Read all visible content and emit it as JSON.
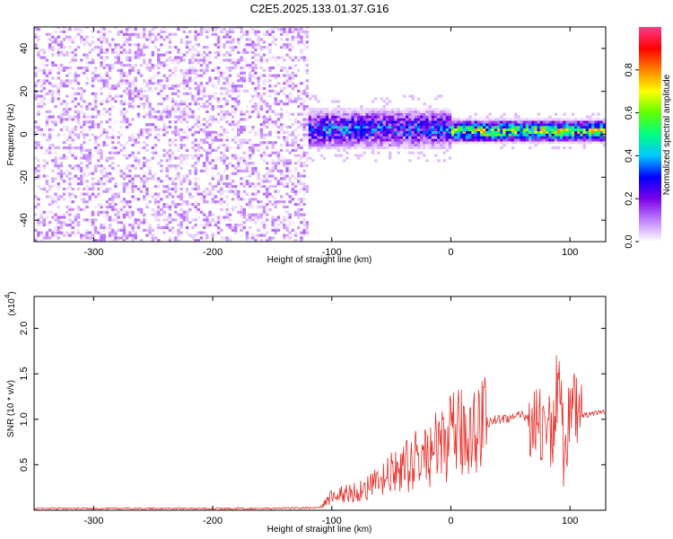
{
  "chart_data": [
    {
      "type": "heatmap",
      "title": "C2E5.2025.133.01.37.G16",
      "xlabel": "Height of straight line (km)",
      "ylabel": "Frequency (Hz)",
      "xlim": [
        -350,
        130
      ],
      "ylim": [
        -50,
        50
      ],
      "x_ticks": [
        -300,
        -200,
        -100,
        0,
        100
      ],
      "x_tick_labels": [
        "-300",
        "-200",
        "-100",
        "0",
        "100"
      ],
      "y_ticks": [
        -40,
        -20,
        0,
        20,
        40
      ],
      "y_tick_labels": [
        "-40",
        "-20",
        "0",
        "20",
        "40"
      ],
      "colorbar": {
        "label": "Normalized spectral amplitude",
        "range": [
          0,
          1
        ],
        "ticks": [
          0.0,
          0.2,
          0.4,
          0.6,
          0.8
        ],
        "tick_labels": [
          "0.0",
          "0.2",
          "0.4",
          "0.6",
          "0.8"
        ],
        "colors": [
          "#ffffff",
          "#c080ff",
          "#7b00e6",
          "#0000ff",
          "#00c8ff",
          "#00ff80",
          "#60ff00",
          "#ffff00",
          "#ff8000",
          "#ff0000",
          "#ff3c8c"
        ]
      },
      "regions": [
        {
          "x_range": [
            -350,
            -120
          ],
          "freq_range": [
            -50,
            50
          ],
          "amplitude": [
            0.0,
            0.12
          ],
          "pattern": "scattered"
        },
        {
          "x_range": [
            -120,
            0
          ],
          "freq_center": 2,
          "freq_halfwidth": 7,
          "amplitude": [
            0.1,
            0.5
          ],
          "pattern": "band"
        },
        {
          "x_range": [
            0,
            130
          ],
          "freq_center": 1,
          "freq_halfwidth": 4,
          "amplitude": [
            0.3,
            0.9
          ],
          "pattern": "band"
        }
      ]
    },
    {
      "type": "line",
      "title": "",
      "xlabel": "Height of straight line (km)",
      "ylabel": "SNR (10 * v/v)",
      "y_scale_label": "(x10",
      "y_scale_exponent": "4",
      "xlim": [
        -350,
        130
      ],
      "ylim": [
        0,
        2.35
      ],
      "x_ticks": [
        -300,
        -200,
        -100,
        0,
        100
      ],
      "x_tick_labels": [
        "-300",
        "-200",
        "-100",
        "0",
        "100"
      ],
      "y_ticks": [
        0.5,
        1.0,
        1.5,
        2.0
      ],
      "y_tick_labels": [
        "0.5",
        "1.0",
        "1.5",
        "2.0"
      ],
      "series": [
        {
          "color": "#e8302a",
          "x": [
            -350,
            -300,
            -250,
            -200,
            -150,
            -110,
            -100,
            -90,
            -80,
            -70,
            -60,
            -50,
            -40,
            -30,
            -20,
            -10,
            0,
            10,
            20,
            30,
            40,
            50,
            60,
            70,
            75,
            80,
            85,
            90,
            95,
            100,
            105,
            110,
            120,
            130
          ],
          "y": [
            0.02,
            0.02,
            0.02,
            0.02,
            0.02,
            0.03,
            0.15,
            0.18,
            0.2,
            0.25,
            0.3,
            0.4,
            0.45,
            0.55,
            0.6,
            0.7,
            0.8,
            0.85,
            0.92,
            0.97,
            1.0,
            1.02,
            1.03,
            1.02,
            0.9,
            1.05,
            0.7,
            1.5,
            0.6,
            1.2,
            1.03,
            1.04,
            1.06,
            1.08
          ]
        }
      ]
    }
  ]
}
